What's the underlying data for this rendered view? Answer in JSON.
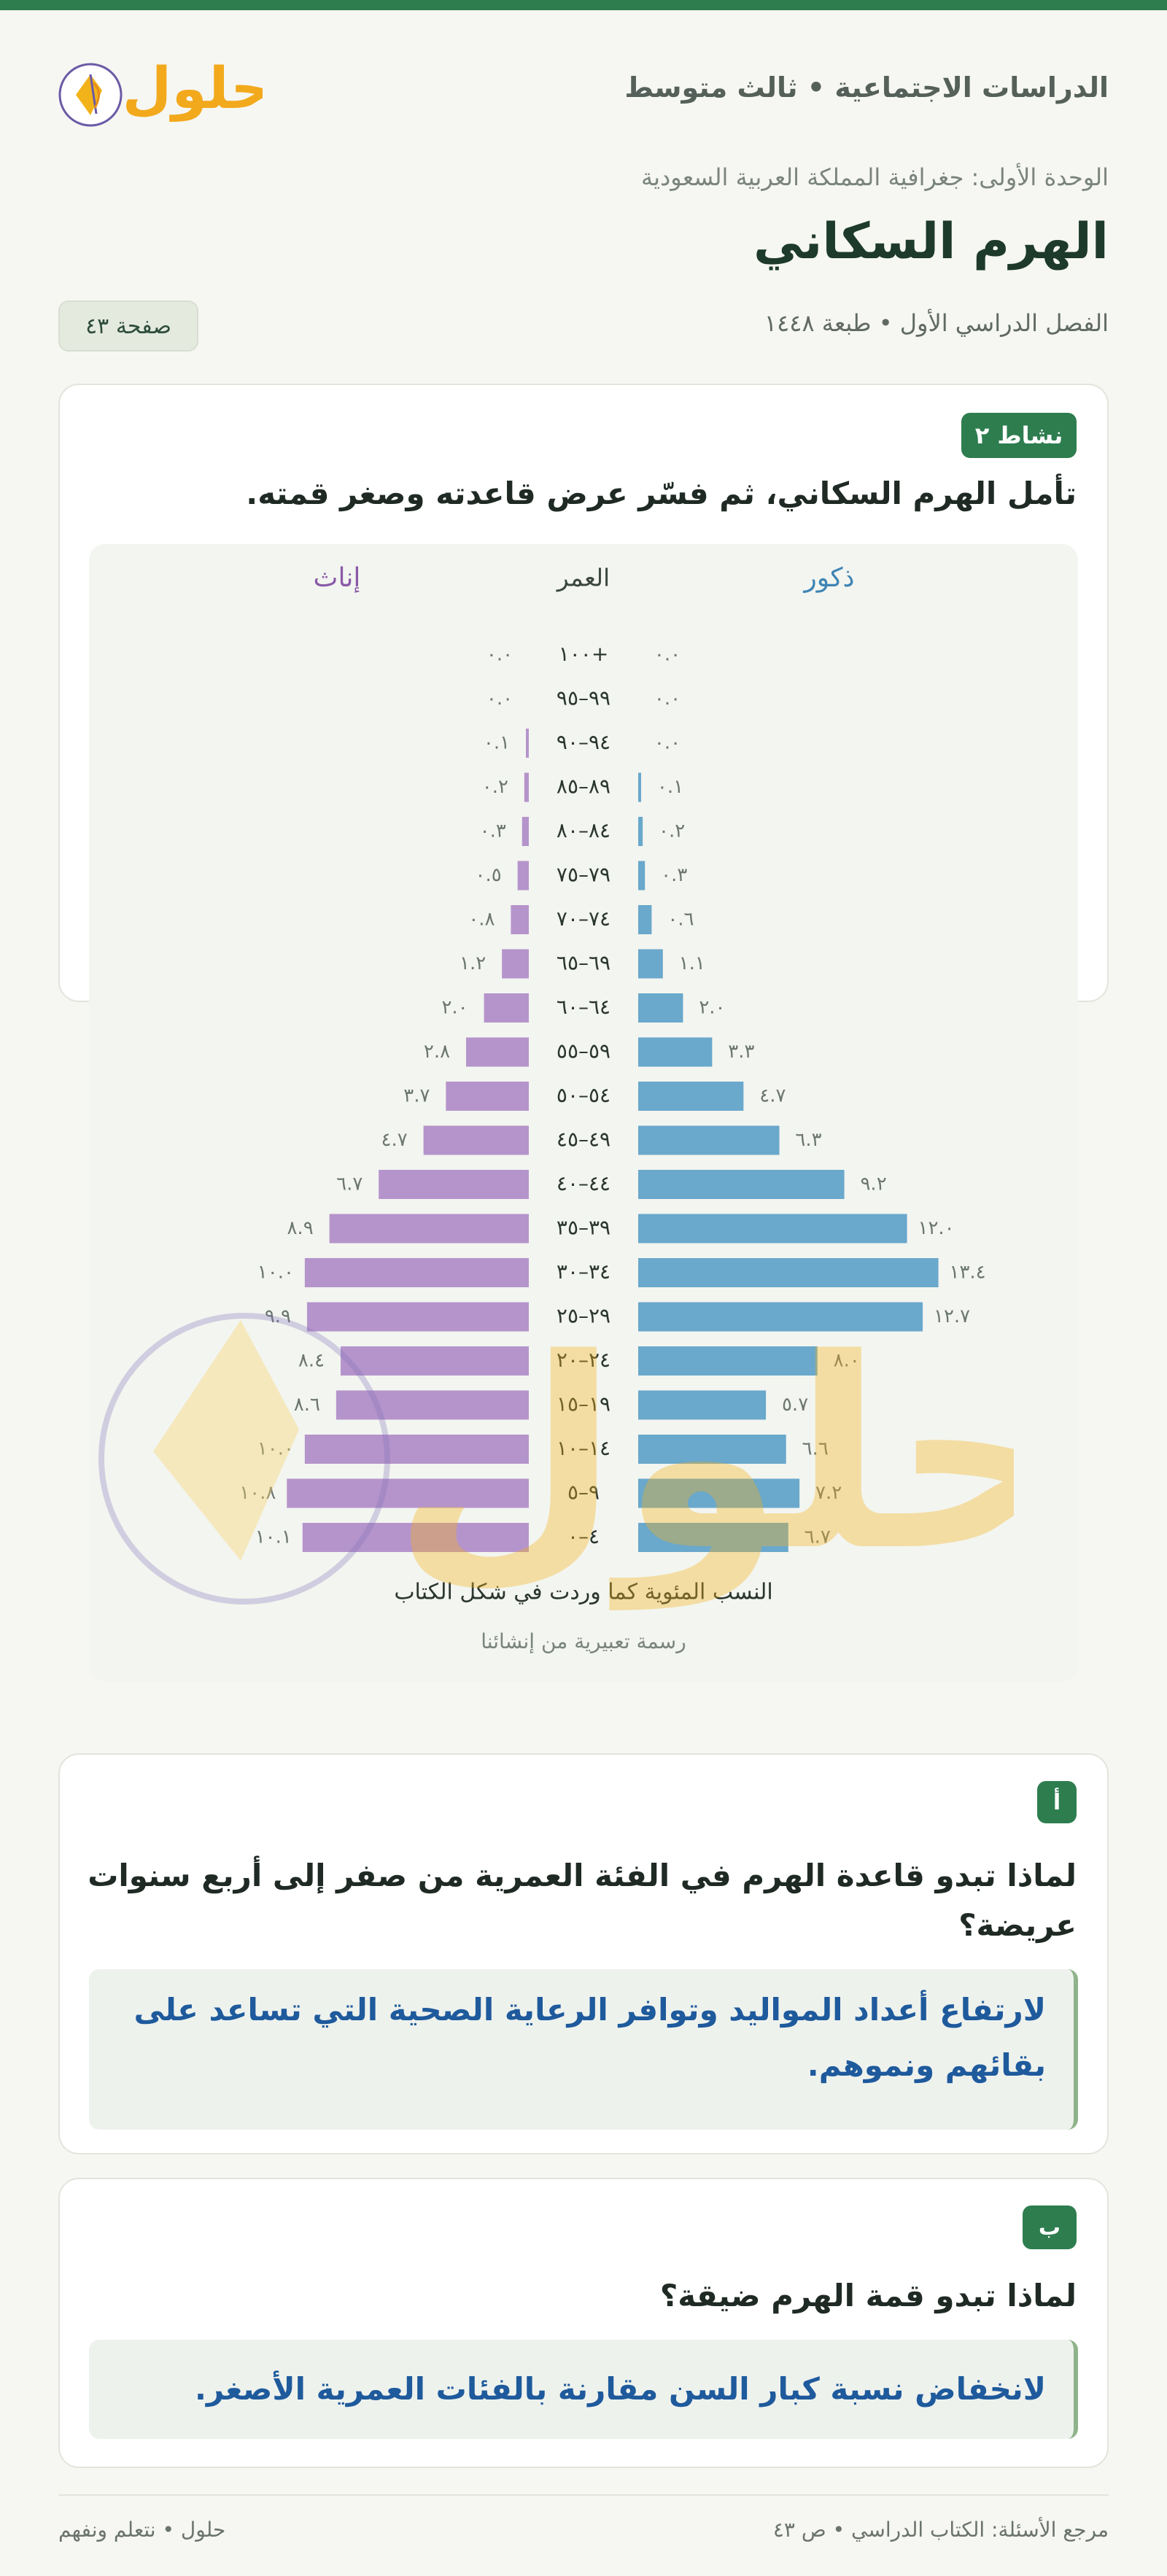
{
  "header": {
    "brand": "حلول",
    "subject": "الدراسات الاجتماعية • ثالث متوسط",
    "unit": "الوحدة الأولى: جغرافية المملكة العربية السعودية",
    "title": "الهرم السكاني",
    "semester": "الفصل الدراسي الأول • طبعة ١٤٤٨",
    "page_badge": "صفحة ٤٣"
  },
  "activity": {
    "tag": "نشاط ٢",
    "question": "تأمل الهرم السكاني، ثم فسّر عرض قاعدته وصغر قمته."
  },
  "chart_data": {
    "type": "bar",
    "orientation": "horizontal-population-pyramid",
    "header_left": "إناث",
    "header_center": "العمر",
    "header_right": "ذكور",
    "categories": [
      "+١٠٠",
      "٩٩–٩٥",
      "٩٤–٩٠",
      "٨٩–٨٥",
      "٨٤–٨٠",
      "٧٩–٧٥",
      "٧٤–٧٠",
      "٦٩–٦٥",
      "٦٤–٦٠",
      "٥٩–٥٥",
      "٥٤–٥٠",
      "٤٩–٤٥",
      "٤٤–٤٠",
      "٣٩–٣٥",
      "٣٤–٣٠",
      "٢٩–٢٥",
      "٢٤–٢٠",
      "١٩–١٥",
      "١٤–١٠",
      "٩–٥",
      "٤–٠"
    ],
    "series": [
      {
        "name": "ذكور",
        "color": "#6aa8cc",
        "values": [
          0.0,
          0.0,
          0.0,
          0.1,
          0.2,
          0.3,
          0.6,
          1.1,
          2.0,
          3.3,
          4.7,
          6.3,
          9.2,
          12.0,
          13.4,
          12.7,
          8.0,
          5.7,
          6.6,
          7.2,
          6.7
        ],
        "labels": [
          "٠.٠",
          "٠.٠",
          "٠.٠",
          "٠.١",
          "٠.٢",
          "٠.٣",
          "٠.٦",
          "١.١",
          "٢.٠",
          "٣.٣",
          "٤.٧",
          "٦.٣",
          "٩.٢",
          "١٢.٠",
          "١٣.٤",
          "١٢.٧",
          "٨.٠",
          "٥.٧",
          "٦.٦",
          "٧.٢",
          "٦.٧"
        ]
      },
      {
        "name": "إناث",
        "color": "#b594cb",
        "values": [
          0.0,
          0.0,
          0.1,
          0.2,
          0.3,
          0.5,
          0.8,
          1.2,
          2.0,
          2.8,
          3.7,
          4.7,
          6.7,
          8.9,
          10.0,
          9.9,
          8.4,
          8.6,
          10.0,
          10.8,
          10.1
        ],
        "labels": [
          "٠.٠",
          "٠.٠",
          "٠.١",
          "٠.٢",
          "٠.٣",
          "٠.٥",
          "٠.٨",
          "١.٢",
          "٢.٠",
          "٢.٨",
          "٣.٧",
          "٤.٧",
          "٦.٧",
          "٨.٩",
          "١٠.٠",
          "٩.٩",
          "٨.٤",
          "٨.٦",
          "١٠.٠",
          "١٠.٨",
          "١٠.١"
        ]
      }
    ],
    "xlim": [
      0,
      14
    ],
    "caption": "النسب المئوية كما وردت في شكل الكتاب",
    "note": "رسمة تعبيرية من إنشائنا"
  },
  "question_a": {
    "tag": "أ",
    "question": "لماذا تبدو قاعدة الهرم في الفئة العمرية من صفر إلى أربع سنوات عريضة؟",
    "answer": "لارتفاع أعداد المواليد وتوافر الرعاية الصحية التي تساعد على بقائهم ونموهم."
  },
  "question_b": {
    "tag": "ب",
    "question": "لماذا تبدو قمة الهرم ضيقة؟",
    "answer": "لانخفاض نسبة كبار السن مقارنة بالفئات العمرية الأصغر."
  },
  "footer": {
    "reference": "مرجع الأسئلة: الكتاب الدراسي • ص ٤٣",
    "slogan": "حلول • نتعلم ونفهم"
  },
  "colors": {
    "accent": "#2e7d4f",
    "male": "#6aa8cc",
    "female": "#b594cb",
    "answer": "#1e5a9c"
  }
}
